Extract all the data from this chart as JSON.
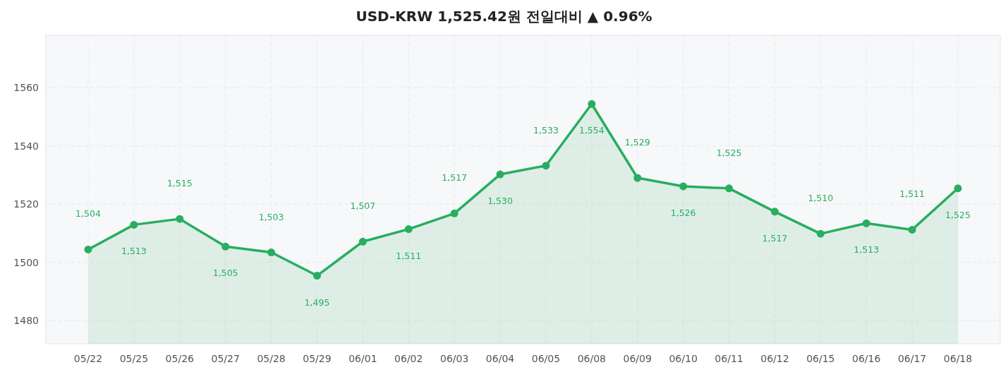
{
  "chart_data": {
    "type": "area",
    "title": "USD-KRW  1,525.42원  전일대비 ▲ 0.96%",
    "categories": [
      "05/22",
      "05/25",
      "05/26",
      "05/27",
      "05/28",
      "05/29",
      "06/01",
      "06/02",
      "06/03",
      "06/04",
      "06/05",
      "06/08",
      "06/09",
      "06/10",
      "06/11",
      "06/12",
      "06/15",
      "06/16",
      "06/17",
      "06/18"
    ],
    "series": [
      {
        "color": "#27ae60",
        "values": [
          1504.4,
          1512.9,
          1514.9,
          1505.4,
          1503.4,
          1495.4,
          1507.1,
          1511.4,
          1516.8,
          1530.2,
          1533.2,
          1554.4,
          1529.0,
          1526.1,
          1525.4,
          1517.4,
          1509.8,
          1513.4,
          1511.2,
          1525.42
        ],
        "value_labels": [
          "1,504",
          "1,513",
          "1,515",
          "1,505",
          "1,503",
          "1,495",
          "1,507",
          "1,511",
          "1,517",
          "1,530",
          "1,533",
          "1,554",
          "1,529",
          "1,526",
          "1,525",
          "1,517",
          "1,510",
          "1,513",
          "1,511",
          "1,525"
        ]
      }
    ],
    "ylim": [
      1472,
      1578
    ],
    "yticks": [
      1480,
      1500,
      1520,
      1540,
      1560
    ],
    "grid": true,
    "marker": "circle",
    "line_style": "solid"
  }
}
